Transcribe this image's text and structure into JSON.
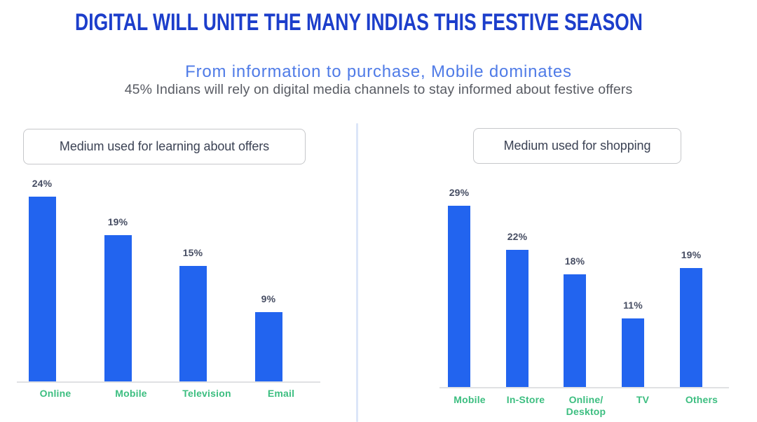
{
  "header": {
    "title": "DIGITAL WILL UNITE THE MANY INDIAS THIS FESTIVE SEASON",
    "subtitle": "From information to purchase, Mobile dominates",
    "description": "45% Indians will rely on digital media channels to stay informed about festive offers"
  },
  "colors": {
    "title_blue": "#1c3ecb",
    "subtitle_blue": "#4f7be7",
    "description_gray": "#585b63",
    "bar_blue": "#2264ef",
    "axis_label_green": "#3cbe80",
    "value_label_slate": "#474e63",
    "box_border_gray": "#c6c7ca",
    "box_text_slate": "#3b4254",
    "divider_light_blue": "#dce6f8",
    "baseline_gray": "#e0e1e3"
  },
  "chart_data": [
    {
      "type": "bar",
      "title": "Medium used for learning about offers",
      "categories": [
        "Online",
        "Mobile",
        "Television",
        "Email"
      ],
      "values": [
        24,
        19,
        15,
        9
      ],
      "value_labels": [
        "24%",
        "19%",
        "15%",
        "9%"
      ],
      "unit": "%",
      "ylim": [
        0,
        26
      ],
      "grid": false,
      "legend": false,
      "bar_color": "#2264ef"
    },
    {
      "type": "bar",
      "title": "Medium used for shopping",
      "categories": [
        "Mobile",
        "In-Store",
        "Online/\nDesktop",
        "TV",
        "Others"
      ],
      "values": [
        29,
        22,
        18,
        11,
        19
      ],
      "value_labels": [
        "29%",
        "22%",
        "18%",
        "11%",
        "19%"
      ],
      "unit": "%",
      "ylim": [
        0,
        31
      ],
      "grid": false,
      "legend": false,
      "bar_color": "#2264ef"
    }
  ]
}
